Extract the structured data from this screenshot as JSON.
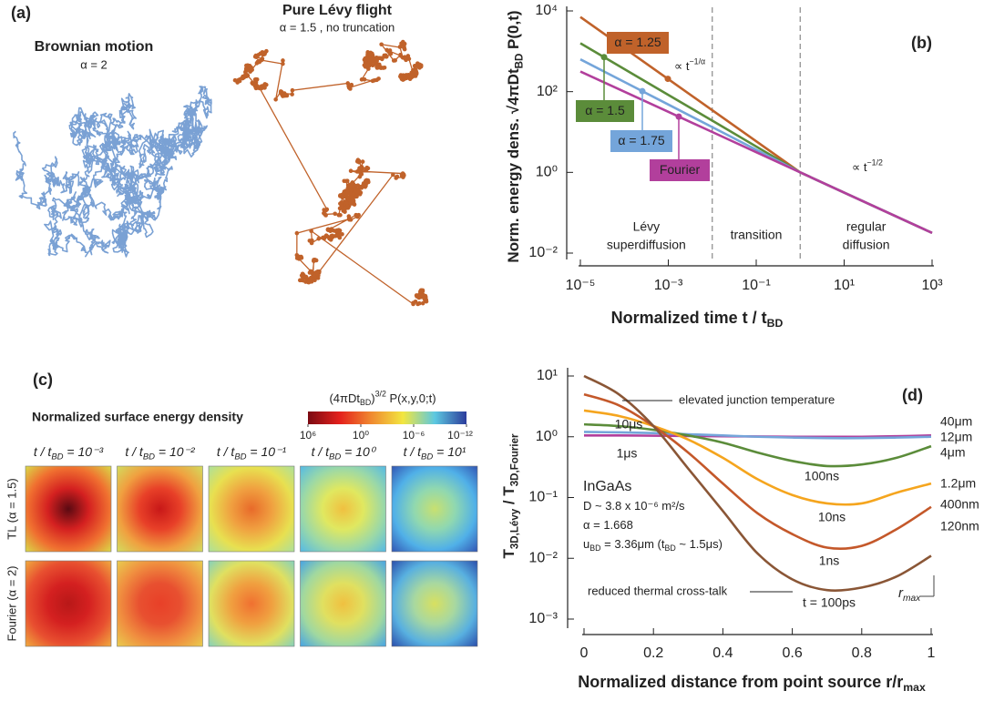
{
  "chart_data": [
    {
      "type": "random-walk",
      "label": "(a)",
      "walks": [
        {
          "name": "Brownian motion",
          "subtitle": "α = 2",
          "color": "#7aa1d4"
        },
        {
          "name": "Pure Lévy flight",
          "subtitle": "α = 1.5 , no truncation",
          "color": "#c0622a"
        }
      ]
    },
    {
      "type": "line",
      "label": "(b)",
      "log_x": true,
      "log_y": true,
      "x": [
        1e-05,
        0.0001,
        0.001,
        0.01,
        0.1,
        1,
        10,
        100,
        1000
      ],
      "series": [
        {
          "name": "α = 1.25",
          "color": "#c0622a",
          "values": [
            7079,
            1202,
            204,
            34.7,
            5.89,
            1,
            0.316,
            0.1,
            0.0316
          ]
        },
        {
          "name": "α = 1.5",
          "color": "#5b8c3a",
          "values": [
            1585,
            363,
            83.2,
            19.1,
            4.37,
            1,
            0.316,
            0.1,
            0.0316
          ]
        },
        {
          "name": "α = 1.75",
          "color": "#74a5da",
          "values": [
            631,
            174,
            47.9,
            13.2,
            3.63,
            1,
            0.316,
            0.1,
            0.0316
          ]
        },
        {
          "name": "Fourier",
          "color": "#b23f9c",
          "values": [
            316,
            100,
            31.6,
            10,
            3.16,
            1,
            0.316,
            0.1,
            0.0316
          ]
        }
      ],
      "xlim": [
        1e-05,
        1000
      ],
      "ylim": [
        0.01,
        10000
      ],
      "xticks": [
        {
          "value": 1e-05,
          "label": "10⁻⁵"
        },
        {
          "value": 0.001,
          "label": "10⁻³"
        },
        {
          "value": 0.1,
          "label": "10⁻¹"
        },
        {
          "value": 10,
          "label": "10¹"
        },
        {
          "value": 1000,
          "label": "10³"
        }
      ],
      "yticks": [
        {
          "value": 0.01,
          "label": "10⁻²"
        },
        {
          "value": 1,
          "label": "10⁰"
        },
        {
          "value": 100,
          "label": "10²"
        },
        {
          "value": 10000,
          "label": "10⁴"
        }
      ],
      "xlabel": [
        "Normalized time  t / t",
        {
          "sub": "BD"
        }
      ],
      "ylabel": [
        "Norm. energy dens. √4πDt",
        {
          "sub": "BD"
        },
        " P(0,t)"
      ],
      "boundaries": [
        0.01,
        1
      ],
      "regions": [
        [
          "Lévy",
          "superdiffusion"
        ],
        [
          "transition"
        ],
        [
          "regular",
          "diffusion"
        ]
      ],
      "annotations": [
        [
          "∝ t",
          {
            "sup": "−1/α"
          }
        ],
        [
          "∝ t",
          {
            "sup": "−1/2"
          }
        ]
      ]
    },
    {
      "type": "heatmap",
      "label": "(c)",
      "title": "Normalized surface energy density",
      "colorbar": {
        "label": [
          "(4πDt",
          {
            "sub": "BD"
          },
          ")",
          {
            "sup": "3/2"
          },
          " P(x,y,0;t)"
        ],
        "clim": [
          1000000,
          1e-12
        ],
        "ticks": [
          {
            "value": 1000000,
            "label": "10⁶"
          },
          {
            "value": 1,
            "label": "10⁰"
          },
          {
            "value": 1e-06,
            "label": "10⁻⁶"
          },
          {
            "value": 1e-12,
            "label": "10⁻¹²"
          }
        ],
        "colors": [
          "#7a0a12",
          "#e4201c",
          "#f08a30",
          "#f2e640",
          "#5cc8e0",
          "#2c3c9c"
        ]
      },
      "columns": [
        [
          "t / t",
          {
            "sub": "BD"
          },
          " = 10⁻³"
        ],
        [
          "t / t",
          {
            "sub": "BD"
          },
          " = 10⁻²"
        ],
        [
          "t / t",
          {
            "sub": "BD"
          },
          " = 10⁻¹"
        ],
        [
          "t / t",
          {
            "sub": "BD"
          },
          " = 10⁰"
        ],
        [
          "t / t",
          {
            "sub": "BD"
          },
          " = 10¹"
        ]
      ],
      "rows": [
        "TL (α = 1.5)",
        "Fourier (α = 2)"
      ],
      "cells": [
        [
          [
            "#5a0a12",
            "#d42020",
            "#f07030",
            "#d8e04a"
          ],
          [
            "#c81818",
            "#e84028",
            "#f0a040",
            "#d0e060"
          ],
          [
            "#e86a2a",
            "#f0a040",
            "#e8e050",
            "#a8e0a0"
          ],
          [
            "#f0c040",
            "#e0e860",
            "#9ad8a8",
            "#50b8e8"
          ],
          [
            "#c8e070",
            "#90d8b0",
            "#50b0e8",
            "#3050b0"
          ]
        ],
        [
          [
            "#b81818",
            "#d42020",
            "#e85030",
            "#f0b040"
          ],
          [
            "#e84028",
            "#e85030",
            "#f09040",
            "#e8d050"
          ],
          [
            "#f07030",
            "#f0a040",
            "#e0e060",
            "#80d0c0"
          ],
          [
            "#f0c040",
            "#e0e060",
            "#a0d8a0",
            "#40a0e8"
          ],
          [
            "#d8e060",
            "#a8d8a0",
            "#58b0e0",
            "#2848a8"
          ]
        ]
      ]
    },
    {
      "type": "line",
      "label": "(d)",
      "log_y": true,
      "x": [
        0,
        0.1,
        0.2,
        0.3,
        0.4,
        0.5,
        0.6,
        0.7,
        0.8,
        0.9,
        1
      ],
      "series": [
        {
          "name": "10μs",
          "end_label": "40μm",
          "color": "#b23f9c",
          "values": [
            1.05,
            1.05,
            1.04,
            1.03,
            1.02,
            1.01,
            1.0,
            1.0,
            1.0,
            1.02,
            1.05
          ]
        },
        {
          "name": "1μs",
          "end_label": "12μm",
          "color": "#74a5da",
          "values": [
            1.2,
            1.18,
            1.15,
            1.1,
            1.05,
            1.0,
            0.97,
            0.95,
            0.95,
            0.97,
            1.0
          ]
        },
        {
          "name": "100ns",
          "end_label": "4μm",
          "color": "#5b8c3a",
          "values": [
            1.6,
            1.5,
            1.3,
            1.05,
            0.8,
            0.55,
            0.4,
            0.33,
            0.35,
            0.45,
            0.7
          ]
        },
        {
          "name": "10ns",
          "end_label": "1.2μm",
          "color": "#f5a51e",
          "values": [
            2.7,
            2.2,
            1.5,
            0.9,
            0.45,
            0.2,
            0.11,
            0.08,
            0.08,
            0.12,
            0.17
          ]
        },
        {
          "name": "1ns",
          "end_label": "400nm",
          "color": "#c4582a",
          "values": [
            5,
            3.3,
            1.5,
            0.55,
            0.17,
            0.055,
            0.025,
            0.015,
            0.016,
            0.03,
            0.07
          ]
        },
        {
          "name": "t = 100ps",
          "end_label": "120nm",
          "color": "#8a5636",
          "values": [
            10,
            5,
            1.5,
            0.3,
            0.06,
            0.012,
            0.0045,
            0.003,
            0.0033,
            0.005,
            0.011
          ]
        }
      ],
      "xlim": [
        0,
        1
      ],
      "ylim": [
        0.001,
        10
      ],
      "xticks": [
        0,
        0.2,
        0.4,
        0.6,
        0.8,
        1
      ],
      "yticks": [
        {
          "value": 0.001,
          "label": "10⁻³"
        },
        {
          "value": 0.01,
          "label": "10⁻²"
        },
        {
          "value": 0.1,
          "label": "10⁻¹"
        },
        {
          "value": 1,
          "label": "10⁰"
        },
        {
          "value": 10,
          "label": "10¹"
        }
      ],
      "xlabel": [
        "Normalized distance from point source  r/r",
        {
          "sub": "max"
        }
      ],
      "ylabel": [
        "T",
        {
          "sub": "3D,Lévy"
        },
        " / T",
        {
          "sub": "3D,Fourier"
        }
      ],
      "annotations": [
        "elevated junction temperature",
        "reduced thermal cross-talk"
      ],
      "material": {
        "name": "InGaAs",
        "lines": [
          [
            "D ~ 3.8 x 10⁻⁶ m²/s"
          ],
          [
            "α = 1.668"
          ],
          [
            "u",
            {
              "sub": "BD"
            },
            " = 3.36μm (t",
            {
              "sub": "BD"
            },
            " ~ 1.5μs)"
          ]
        ]
      },
      "rmax_label": [
        "r",
        {
          "sub": "max"
        }
      ]
    }
  ]
}
